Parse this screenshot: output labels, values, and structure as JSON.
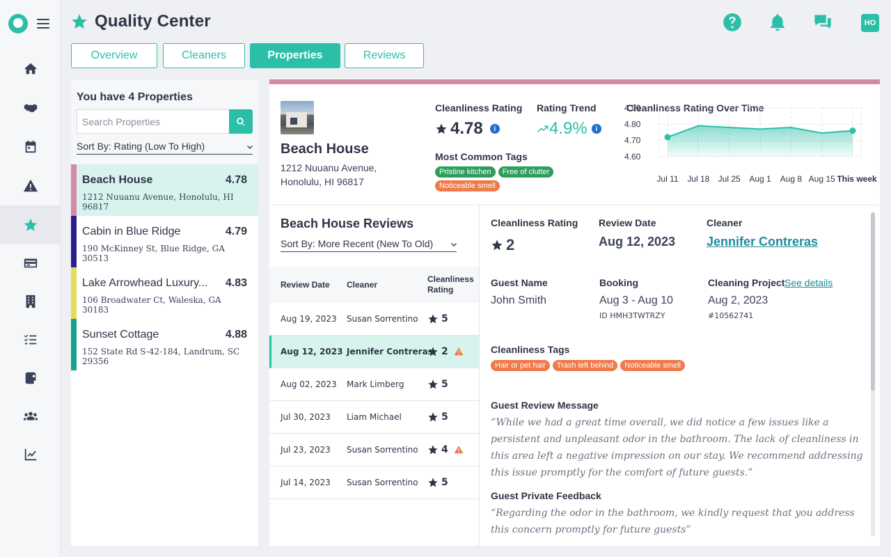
{
  "header": {
    "title": "Quality Center",
    "avatar": "HO"
  },
  "rail": {
    "items": [
      "home-icon",
      "handshake-icon",
      "calendar-icon",
      "warning-icon",
      "star-icon",
      "card-icon",
      "building-icon",
      "checklist-icon",
      "supplies-icon",
      "team-icon",
      "chart-icon"
    ],
    "active": "star-icon"
  },
  "tabs": [
    {
      "label": "Overview"
    },
    {
      "label": "Cleaners"
    },
    {
      "label": "Properties"
    },
    {
      "label": "Reviews"
    }
  ],
  "properties": {
    "count_label": "You have 4 Properties",
    "search_placeholder": "Search Properties",
    "sort_label": "Sort By: Rating (Low To High)",
    "items": [
      {
        "name": "Beach House",
        "rating": "4.78",
        "address": "1212 Nuuanu Avenue, Honolulu, HI 96817",
        "color": "#d48aa6"
      },
      {
        "name": "Cabin in Blue Ridge",
        "rating": "4.79",
        "address": "190 McKinney St, Blue Ridge, GA 30513",
        "color": "#2a1f8f"
      },
      {
        "name": "Lake Arrowhead Luxury...",
        "rating": "4.83",
        "address": "106 Broadwater Ct, Waleska, GA 30183",
        "color": "#e3de5a"
      },
      {
        "name": "Sunset Cottage",
        "rating": "4.88",
        "address": "152 State Rd S-42-184, Landrum, SC 29356",
        "color": "#14a38c"
      }
    ]
  },
  "summary": {
    "name": "Beach House",
    "address_line1": "1212 Nuuanu Avenue,",
    "address_line2": "Honolulu, HI 96817",
    "rating_label": "Cleanliness Rating",
    "rating": "4.78",
    "trend_label": "Rating Trend",
    "trend": "4.9%",
    "tags_label": "Most Common Tags",
    "tags": [
      {
        "text": "Pristine kitchen",
        "color": "#2e9e5b"
      },
      {
        "text": "Free of clutter",
        "color": "#2e9e5b"
      },
      {
        "text": "Noticeable smell",
        "color": "#ef7a4a"
      }
    ],
    "chart_title": "Cleanliness Rating Over Time"
  },
  "chart_data": {
    "type": "area",
    "title": "Cleanliness Rating Over Time",
    "categories": [
      "Jul 11",
      "Jul 18",
      "Jul 25",
      "Aug 1",
      "Aug 8",
      "Aug 15",
      "This week"
    ],
    "values": [
      4.72,
      4.79,
      4.78,
      4.77,
      4.78,
      4.745,
      4.76
    ],
    "yticks": [
      "4.90",
      "4.80",
      "4.70",
      "4.60"
    ],
    "ylim": [
      4.6,
      4.9
    ],
    "grid": true,
    "color": "#2bbfa8"
  },
  "reviews": {
    "title": "Beach House Reviews",
    "sort_label": "Sort By: More Recent (New To Old)",
    "columns": [
      "Review Date",
      "Cleaner",
      "Cleanliness Rating"
    ],
    "rows": [
      {
        "date": "Aug 19, 2023",
        "cleaner": "Susan Sorrentino",
        "rating": "5",
        "warn": false,
        "selected": false
      },
      {
        "date": "Aug 12, 2023",
        "cleaner": "Jennifer Contreras",
        "rating": "2",
        "warn": true,
        "selected": true
      },
      {
        "date": "Aug 02, 2023",
        "cleaner": "Mark Limberg",
        "rating": "5",
        "warn": false,
        "selected": false
      },
      {
        "date": "Jul 30, 2023",
        "cleaner": "Liam Michael",
        "rating": "5",
        "warn": false,
        "selected": false
      },
      {
        "date": "Jul 23, 2023",
        "cleaner": "Susan Sorrentino",
        "rating": "4",
        "warn": true,
        "selected": false
      },
      {
        "date": "Jul 14, 2023",
        "cleaner": "Susan Sorrentino",
        "rating": "5",
        "warn": false,
        "selected": false
      }
    ]
  },
  "detail": {
    "rating_label": "Cleanliness Rating",
    "rating": "2",
    "date_label": "Review Date",
    "date": "Aug 12, 2023",
    "cleaner_label": "Cleaner",
    "cleaner": "Jennifer Contreras",
    "guest_label": "Guest Name",
    "guest": "John Smith",
    "booking_label": "Booking",
    "booking": "Aug 3 - Aug 10",
    "booking_id": "ID HMH3TWTRZY",
    "project_label": "Cleaning Project",
    "project_link": "See details",
    "project_date": "Aug 2, 2023",
    "project_id": "#10562741",
    "tags_label": "Cleanliness Tags",
    "tags": [
      {
        "text": "Hair or pet hair",
        "color": "#ef7a4a"
      },
      {
        "text": "Trash left behind",
        "color": "#ef7a4a"
      },
      {
        "text": "Noticeable smell",
        "color": "#ef7a4a"
      }
    ],
    "message_label": "Guest Review Message",
    "message": "“While we had a great time overall, we did notice a few issues like a persistent and unpleasant odor in the bathroom. The lack of cleanliness in this area left a negative impression on our stay. We recommend addressing this issue promptly for the comfort of future guests.”",
    "feedback_label": "Guest Private Feedback",
    "feedback": "“Regarding the odor in the bathroom, we kindly request that you address this concern promptly for future guests”"
  }
}
